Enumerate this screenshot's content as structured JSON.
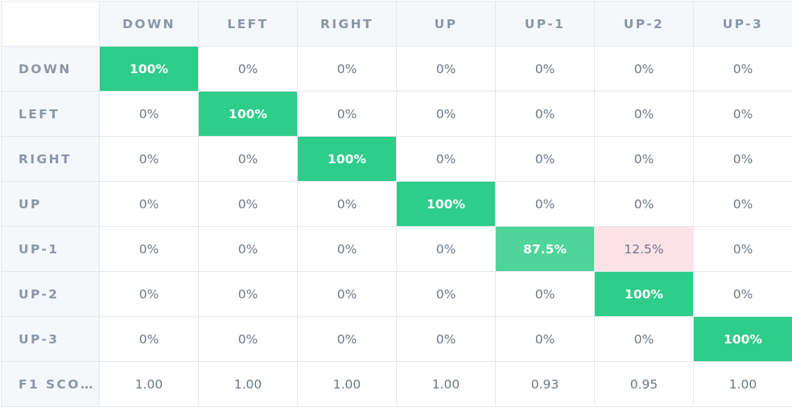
{
  "columns": [
    "DOWN",
    "LEFT",
    "RIGHT",
    "UP",
    "UP-1",
    "UP-2",
    "UP-3"
  ],
  "rows": [
    {
      "label": "DOWN",
      "cells": [
        "100%",
        "0%",
        "0%",
        "0%",
        "0%",
        "0%",
        "0%"
      ]
    },
    {
      "label": "LEFT",
      "cells": [
        "0%",
        "100%",
        "0%",
        "0%",
        "0%",
        "0%",
        "0%"
      ]
    },
    {
      "label": "RIGHT",
      "cells": [
        "0%",
        "0%",
        "100%",
        "0%",
        "0%",
        "0%",
        "0%"
      ]
    },
    {
      "label": "UP",
      "cells": [
        "0%",
        "0%",
        "0%",
        "100%",
        "0%",
        "0%",
        "0%"
      ]
    },
    {
      "label": "UP-1",
      "cells": [
        "0%",
        "0%",
        "0%",
        "0%",
        "87.5%",
        "12.5%",
        "0%"
      ]
    },
    {
      "label": "UP-2",
      "cells": [
        "0%",
        "0%",
        "0%",
        "0%",
        "0%",
        "100%",
        "0%"
      ]
    },
    {
      "label": "UP-3",
      "cells": [
        "0%",
        "0%",
        "0%",
        "0%",
        "0%",
        "0%",
        "100%"
      ]
    }
  ],
  "f1": {
    "label": "F1 SCO…",
    "values": [
      "1.00",
      "1.00",
      "1.00",
      "1.00",
      "0.93",
      "0.95",
      "1.00"
    ]
  },
  "colors": {
    "correct": "#2ecd8a",
    "partial": "#4fd499",
    "error": "#fde3e7",
    "header_bg": "#f5f8fb",
    "header_text": "#8a96a8",
    "cell_text": "#6d7787"
  }
}
